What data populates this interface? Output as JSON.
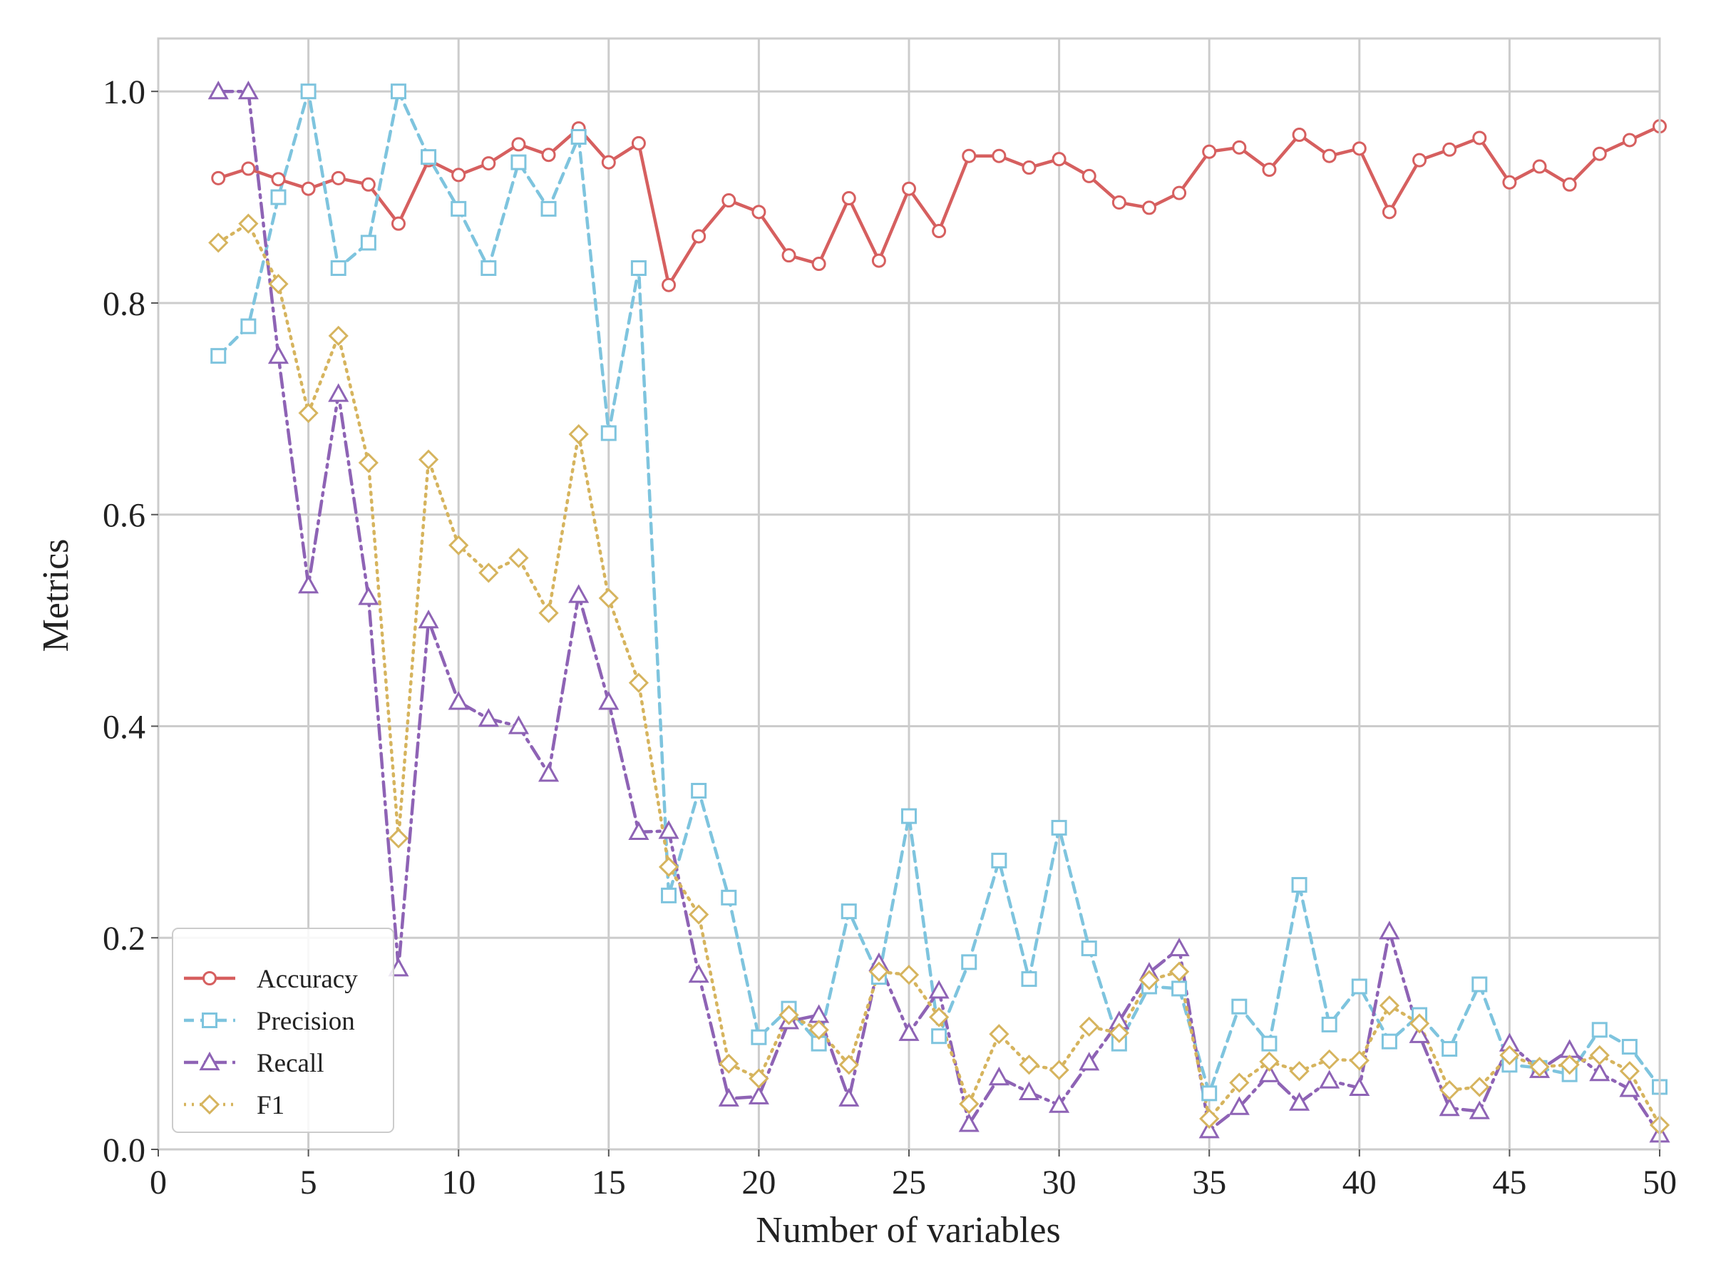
{
  "chart_data": {
    "type": "line",
    "xlabel": "Number of variables",
    "ylabel": "Metrics",
    "xlim": [
      0,
      50
    ],
    "ylim": [
      0,
      1.05
    ],
    "x_ticks": [
      "0",
      "5",
      "10",
      "15",
      "20",
      "25",
      "30",
      "35",
      "40",
      "45",
      "50"
    ],
    "y_ticks": [
      "0.0",
      "0.2",
      "0.4",
      "0.6",
      "0.8",
      "1.0"
    ],
    "x_tick_values": [
      0,
      5,
      10,
      15,
      20,
      25,
      30,
      35,
      40,
      45,
      50
    ],
    "y_tick_values": [
      0,
      0.2,
      0.4,
      0.6,
      0.8,
      1.0
    ],
    "grid": true,
    "legend_position": "lower-left",
    "x": [
      2,
      3,
      4,
      5,
      6,
      7,
      8,
      9,
      10,
      11,
      12,
      13,
      14,
      15,
      16,
      17,
      18,
      19,
      20,
      21,
      22,
      23,
      24,
      25,
      26,
      27,
      28,
      29,
      30,
      31,
      32,
      33,
      34,
      35,
      36,
      37,
      38,
      39,
      40,
      41,
      42,
      43,
      44,
      45,
      46,
      47,
      48,
      49,
      50
    ],
    "series": [
      {
        "name": "Accuracy",
        "color": "#d65f5f",
        "marker": "circle",
        "linestyle": "solid",
        "values": [
          0.918,
          0.927,
          0.917,
          0.908,
          0.918,
          0.912,
          0.875,
          0.935,
          0.921,
          0.932,
          0.95,
          0.94,
          0.965,
          0.933,
          0.951,
          0.817,
          0.863,
          0.897,
          0.886,
          0.845,
          0.837,
          0.899,
          0.84,
          0.908,
          0.868,
          0.939,
          0.939,
          0.928,
          0.936,
          0.92,
          0.895,
          0.89,
          0.904,
          0.943,
          0.947,
          0.926,
          0.959,
          0.939,
          0.946,
          0.886,
          0.935,
          0.945,
          0.956,
          0.914,
          0.929,
          0.912,
          0.941,
          0.954,
          0.967
        ]
      },
      {
        "name": "Precision",
        "color": "#7ec4de",
        "marker": "square",
        "linestyle": "dashed",
        "values": [
          0.75,
          0.778,
          0.9,
          1.0,
          0.833,
          0.857,
          1.0,
          0.938,
          0.889,
          0.833,
          0.933,
          0.889,
          0.957,
          0.677,
          0.833,
          0.24,
          0.339,
          0.238,
          0.106,
          0.133,
          0.1,
          0.225,
          0.163,
          0.315,
          0.107,
          0.177,
          0.273,
          0.161,
          0.304,
          0.19,
          0.1,
          0.154,
          0.152,
          0.053,
          0.135,
          0.1,
          0.25,
          0.118,
          0.154,
          0.102,
          0.127,
          0.095,
          0.156,
          0.08,
          0.077,
          0.071,
          0.113,
          0.097,
          0.059
        ]
      },
      {
        "name": "Recall",
        "color": "#8e63b5",
        "marker": "triangle",
        "linestyle": "dashdot",
        "values": [
          1.0,
          1.0,
          0.75,
          0.533,
          0.714,
          0.522,
          0.171,
          0.5,
          0.423,
          0.407,
          0.4,
          0.355,
          0.524,
          0.423,
          0.3,
          0.301,
          0.165,
          0.048,
          0.05,
          0.121,
          0.127,
          0.048,
          0.176,
          0.11,
          0.15,
          0.024,
          0.068,
          0.054,
          0.042,
          0.082,
          0.121,
          0.167,
          0.19,
          0.018,
          0.04,
          0.071,
          0.044,
          0.065,
          0.058,
          0.206,
          0.108,
          0.039,
          0.036,
          0.1,
          0.075,
          0.094,
          0.072,
          0.057,
          0.014
        ]
      },
      {
        "name": "F1",
        "color": "#d6b45e",
        "marker": "diamond",
        "linestyle": "dotted",
        "values": [
          0.857,
          0.875,
          0.818,
          0.696,
          0.769,
          0.649,
          0.294,
          0.652,
          0.571,
          0.545,
          0.559,
          0.507,
          0.676,
          0.521,
          0.441,
          0.267,
          0.222,
          0.081,
          0.067,
          0.127,
          0.113,
          0.08,
          0.168,
          0.165,
          0.125,
          0.043,
          0.109,
          0.08,
          0.075,
          0.116,
          0.11,
          0.16,
          0.168,
          0.029,
          0.063,
          0.083,
          0.074,
          0.085,
          0.084,
          0.136,
          0.119,
          0.056,
          0.059,
          0.089,
          0.078,
          0.08,
          0.089,
          0.074,
          0.023
        ]
      }
    ]
  }
}
